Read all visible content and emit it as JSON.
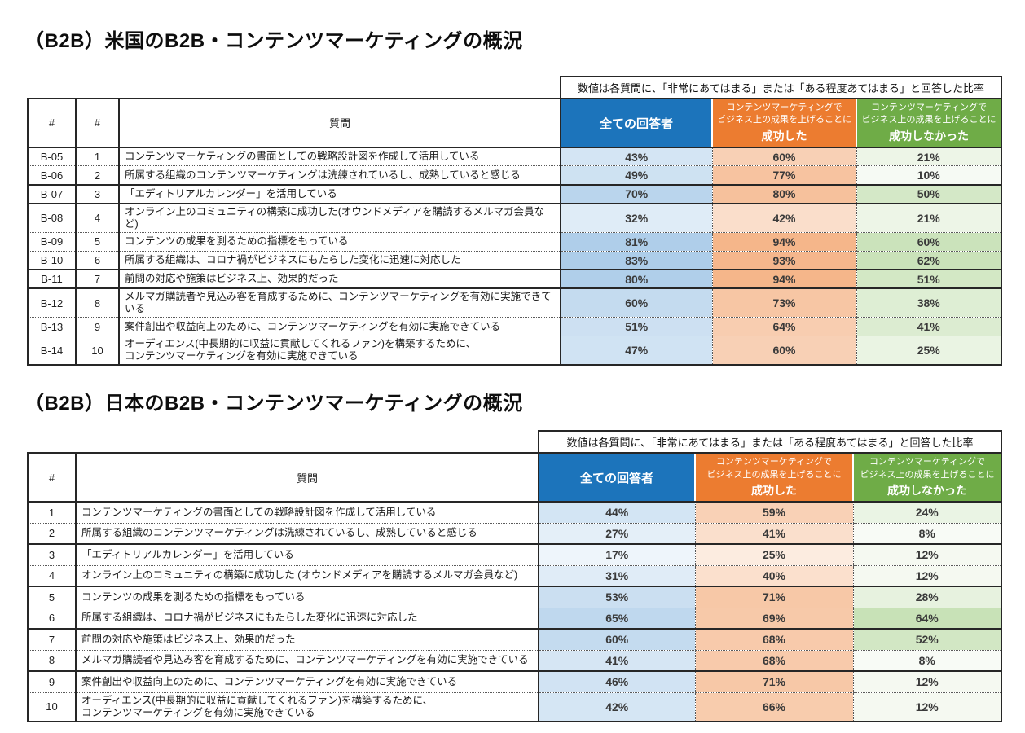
{
  "colors": {
    "header_blue": "#1C74BB",
    "header_orange": "#EC7C30",
    "header_green": "#6FAC47",
    "border_dark": "#262626"
  },
  "tables": [
    {
      "title": "（B2B）米国のB2B・コンテンツマーケティングの概況",
      "note": "数値は各質問に、「非常にあてはまる」または「ある程度あてはまる」と回答した比率",
      "id_headers": [
        "#",
        "#"
      ],
      "question_header": "質問",
      "value_headers": [
        {
          "lines": [],
          "label": "全ての回答者",
          "bg": "#1C74BB"
        },
        {
          "lines": [
            "コンテンツマーケティングで",
            "ビジネス上の成果を上げることに"
          ],
          "label": "成功した",
          "bg": "#EC7C30"
        },
        {
          "lines": [
            "コンテンツマーケティングで",
            "ビジネス上の成果を上げることに"
          ],
          "label": "成功しなかった",
          "bg": "#6FAC47"
        }
      ],
      "value_scale_colors": [
        "#9CC3E5",
        "#F4B183",
        "#A9D18E"
      ],
      "rows": [
        {
          "ids": [
            "B-05",
            "1"
          ],
          "question": "コンテンツマーケティングの書面としての戦略設計図を作成して活用している",
          "values": [
            43,
            60,
            21
          ],
          "solid_bottom": false
        },
        {
          "ids": [
            "B-06",
            "2"
          ],
          "question": "所属する組織のコンテンツマーケティングは洗練されているし、成熟していると感じる",
          "values": [
            49,
            77,
            10
          ],
          "solid_bottom": true
        },
        {
          "ids": [
            "B-07",
            "3"
          ],
          "question": "「エディトリアルカレンダー」を活用している",
          "values": [
            70,
            80,
            50
          ],
          "solid_bottom": true
        },
        {
          "ids": [
            "B-08",
            "4"
          ],
          "question": "オンライン上のコミュニティの構築に成功した(オウンドメディアを購読するメルマガ会員など)",
          "values": [
            32,
            42,
            21
          ],
          "solid_bottom": false
        },
        {
          "ids": [
            "B-09",
            "5"
          ],
          "question": "コンテンツの成果を測るための指標をもっている",
          "values": [
            81,
            94,
            60
          ],
          "solid_bottom": false
        },
        {
          "ids": [
            "B-10",
            "6"
          ],
          "question": "所属する組織は、コロナ禍がビジネスにもたらした変化に迅速に対応した",
          "values": [
            83,
            93,
            62
          ],
          "solid_bottom": true
        },
        {
          "ids": [
            "B-11",
            "7"
          ],
          "question": "前問の対応や施策はビジネス上、効果的だった",
          "values": [
            80,
            94,
            51
          ],
          "solid_bottom": true
        },
        {
          "ids": [
            "B-12",
            "8"
          ],
          "question": "メルマガ購読者や見込み客を育成するために、コンテンツマーケティングを有効に実施できている",
          "values": [
            60,
            73,
            38
          ],
          "solid_bottom": false
        },
        {
          "ids": [
            "B-13",
            "9"
          ],
          "question": "案件創出や収益向上のために、コンテンツマーケティングを有効に実施できている",
          "values": [
            51,
            64,
            41
          ],
          "solid_bottom": false
        },
        {
          "ids": [
            "B-14",
            "10"
          ],
          "question": "オーディエンス(中長期的に収益に貢献してくれるファン)を構築するために、\nコンテンツマーケティングを有効に実施できている",
          "values": [
            47,
            60,
            25
          ],
          "solid_bottom": false
        }
      ]
    },
    {
      "title": "（B2B）日本のB2B・コンテンツマーケティングの概況",
      "note": "数値は各質問に、「非常にあてはまる」または「ある程度あてはまる」と回答した比率",
      "id_headers": [
        "#"
      ],
      "question_header": "質問",
      "value_headers": [
        {
          "lines": [],
          "label": "全ての回答者",
          "bg": "#1C74BB"
        },
        {
          "lines": [
            "コンテンツマーケティングで",
            "ビジネス上の成果を上げることに"
          ],
          "label": "成功した",
          "bg": "#EC7C30"
        },
        {
          "lines": [
            "コンテンツマーケティングで",
            "ビジネス上の成果を上げることに"
          ],
          "label": "成功しなかった",
          "bg": "#6FAC47"
        }
      ],
      "value_scale_colors": [
        "#9CC3E5",
        "#F4B183",
        "#A9D18E"
      ],
      "rows": [
        {
          "ids": [
            "1"
          ],
          "question": "コンテンツマーケティングの書面としての戦略設計図を作成して活用している",
          "values": [
            44,
            59,
            24
          ],
          "solid_bottom": false
        },
        {
          "ids": [
            "2"
          ],
          "question": "所属する組織のコンテンツマーケティングは洗練されているし、成熟していると感じる",
          "values": [
            27,
            41,
            8
          ],
          "solid_bottom": true
        },
        {
          "ids": [
            "3"
          ],
          "question": "「エディトリアルカレンダー」を活用している",
          "values": [
            17,
            25,
            12
          ],
          "solid_bottom": false
        },
        {
          "ids": [
            "4"
          ],
          "question": "オンライン上のコミュニティの構築に成功した (オウンドメディアを購読するメルマガ会員など)",
          "values": [
            31,
            40,
            12
          ],
          "solid_bottom": true
        },
        {
          "ids": [
            "5"
          ],
          "question": "コンテンツの成果を測るための指標をもっている",
          "values": [
            53,
            71,
            28
          ],
          "solid_bottom": false
        },
        {
          "ids": [
            "6"
          ],
          "question": "所属する組織は、コロナ禍がビジネスにもたらした変化に迅速に対応した",
          "values": [
            65,
            69,
            64
          ],
          "solid_bottom": true
        },
        {
          "ids": [
            "7"
          ],
          "question": "前問の対応や施策はビジネス上、効果的だった",
          "values": [
            60,
            68,
            52
          ],
          "solid_bottom": false
        },
        {
          "ids": [
            "8"
          ],
          "question": "メルマガ購読者や見込み客を育成するために、コンテンツマーケティングを有効に実施できている",
          "values": [
            41,
            68,
            8
          ],
          "solid_bottom": true
        },
        {
          "ids": [
            "9"
          ],
          "question": "案件創出や収益向上のために、コンテンツマーケティングを有効に実施できている",
          "values": [
            46,
            71,
            12
          ],
          "solid_bottom": false
        },
        {
          "ids": [
            "10"
          ],
          "question": "オーディエンス(中長期的に収益に貢献してくれるファン)を構築するために、\nコンテンツマーケティングを有効に実施できている",
          "values": [
            42,
            66,
            12
          ],
          "solid_bottom": false
        }
      ]
    }
  ]
}
